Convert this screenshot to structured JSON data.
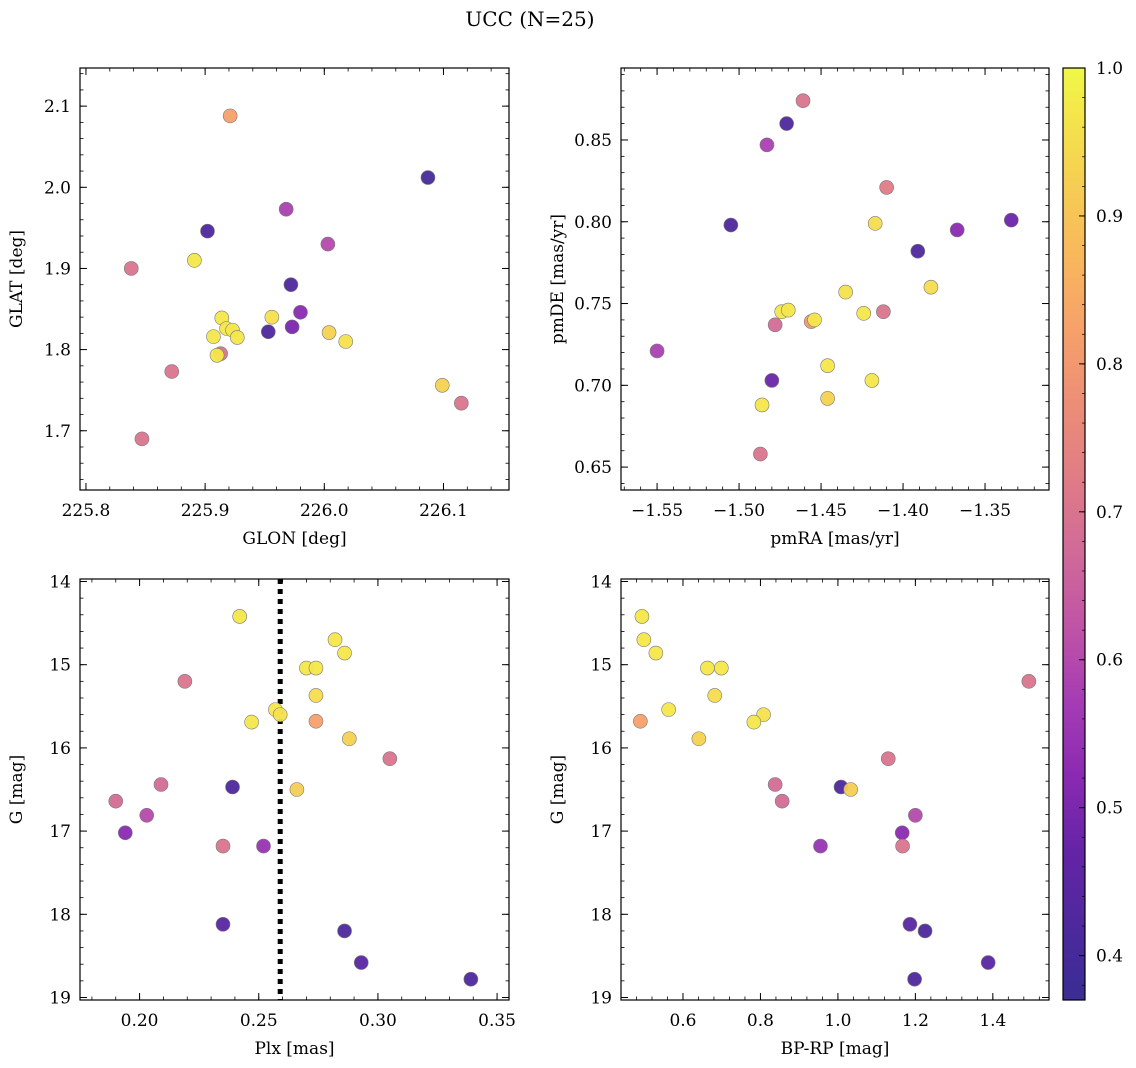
{
  "figure": {
    "title": "UCC (N=25)",
    "colorbar": {
      "cmap": "plasma",
      "range": [
        0.37,
        1.0
      ],
      "ticks": [
        0.4,
        0.5,
        0.6,
        0.7,
        0.8,
        0.9,
        1.0
      ],
      "tick_labels": [
        "0.4",
        "0.5",
        "0.6",
        "0.7",
        "0.8",
        "0.9",
        "1.0"
      ]
    }
  },
  "chart_data": [
    {
      "id": "glon-glat",
      "type": "scatter",
      "xlabel": "GLON [deg]",
      "ylabel": "GLAT [deg]",
      "xlim": [
        225.795,
        226.155
      ],
      "ylim": [
        1.627,
        2.147
      ],
      "xticks": [
        225.8,
        225.9,
        226.0,
        226.1
      ],
      "xtick_labels": [
        "225.8",
        "225.9",
        "226.0",
        "226.1"
      ],
      "yticks": [
        1.7,
        1.8,
        1.9,
        2.0,
        2.1
      ],
      "ytick_labels": [
        "1.7",
        "1.8",
        "1.9",
        "2.0",
        "2.1"
      ],
      "grid": false,
      "points": [
        {
          "x": 225.921,
          "y": 2.088,
          "c": 0.82
        },
        {
          "x": 226.087,
          "y": 2.012,
          "c": 0.4
        },
        {
          "x": 225.968,
          "y": 1.973,
          "c": 0.58
        },
        {
          "x": 225.902,
          "y": 1.946,
          "c": 0.42
        },
        {
          "x": 226.003,
          "y": 1.93,
          "c": 0.6
        },
        {
          "x": 225.891,
          "y": 1.91,
          "c": 0.97
        },
        {
          "x": 225.838,
          "y": 1.9,
          "c": 0.7
        },
        {
          "x": 225.972,
          "y": 1.88,
          "c": 0.42
        },
        {
          "x": 225.98,
          "y": 1.846,
          "c": 0.52
        },
        {
          "x": 225.956,
          "y": 1.84,
          "c": 0.96
        },
        {
          "x": 225.914,
          "y": 1.839,
          "c": 0.97
        },
        {
          "x": 225.973,
          "y": 1.828,
          "c": 0.5
        },
        {
          "x": 225.918,
          "y": 1.826,
          "c": 0.97
        },
        {
          "x": 225.923,
          "y": 1.824,
          "c": 0.97
        },
        {
          "x": 225.953,
          "y": 1.822,
          "c": 0.42
        },
        {
          "x": 226.004,
          "y": 1.821,
          "c": 0.93
        },
        {
          "x": 225.907,
          "y": 1.816,
          "c": 0.97
        },
        {
          "x": 225.927,
          "y": 1.815,
          "c": 0.97
        },
        {
          "x": 226.018,
          "y": 1.81,
          "c": 0.96
        },
        {
          "x": 225.913,
          "y": 1.795,
          "c": 0.7
        },
        {
          "x": 225.91,
          "y": 1.793,
          "c": 0.97
        },
        {
          "x": 225.872,
          "y": 1.773,
          "c": 0.7
        },
        {
          "x": 226.099,
          "y": 1.756,
          "c": 0.93
        },
        {
          "x": 226.115,
          "y": 1.734,
          "c": 0.7
        },
        {
          "x": 225.847,
          "y": 1.69,
          "c": 0.7
        }
      ]
    },
    {
      "id": "pmra-pmde",
      "type": "scatter",
      "xlabel": "pmRA [mas/yr]",
      "ylabel": "pmDE [mas/yr]",
      "xlim": [
        -1.572,
        -1.311
      ],
      "ylim": [
        0.636,
        0.894
      ],
      "xticks": [
        -1.55,
        -1.5,
        -1.45,
        -1.4,
        -1.35
      ],
      "xtick_labels": [
        "−1.55",
        "−1.50",
        "−1.45",
        "−1.40",
        "−1.35"
      ],
      "yticks": [
        0.65,
        0.7,
        0.75,
        0.8,
        0.85
      ],
      "ytick_labels": [
        "0.65",
        "0.70",
        "0.75",
        "0.80",
        "0.85"
      ],
      "grid": false,
      "points": [
        {
          "x": -1.461,
          "y": 0.874,
          "c": 0.7
        },
        {
          "x": -1.471,
          "y": 0.86,
          "c": 0.42
        },
        {
          "x": -1.483,
          "y": 0.847,
          "c": 0.58
        },
        {
          "x": -1.41,
          "y": 0.821,
          "c": 0.72
        },
        {
          "x": -1.334,
          "y": 0.801,
          "c": 0.48
        },
        {
          "x": -1.417,
          "y": 0.799,
          "c": 0.95
        },
        {
          "x": -1.505,
          "y": 0.798,
          "c": 0.42
        },
        {
          "x": -1.367,
          "y": 0.795,
          "c": 0.52
        },
        {
          "x": -1.391,
          "y": 0.782,
          "c": 0.42
        },
        {
          "x": -1.383,
          "y": 0.76,
          "c": 0.95
        },
        {
          "x": -1.435,
          "y": 0.757,
          "c": 0.96
        },
        {
          "x": -1.474,
          "y": 0.745,
          "c": 0.97
        },
        {
          "x": -1.47,
          "y": 0.746,
          "c": 0.97
        },
        {
          "x": -1.424,
          "y": 0.744,
          "c": 0.97
        },
        {
          "x": -1.412,
          "y": 0.745,
          "c": 0.7
        },
        {
          "x": -1.456,
          "y": 0.739,
          "c": 0.8
        },
        {
          "x": -1.454,
          "y": 0.74,
          "c": 0.97
        },
        {
          "x": -1.478,
          "y": 0.737,
          "c": 0.68
        },
        {
          "x": -1.55,
          "y": 0.721,
          "c": 0.58
        },
        {
          "x": -1.446,
          "y": 0.712,
          "c": 0.97
        },
        {
          "x": -1.48,
          "y": 0.703,
          "c": 0.48
        },
        {
          "x": -1.419,
          "y": 0.703,
          "c": 0.97
        },
        {
          "x": -1.446,
          "y": 0.692,
          "c": 0.93
        },
        {
          "x": -1.486,
          "y": 0.688,
          "c": 0.97
        },
        {
          "x": -1.487,
          "y": 0.658,
          "c": 0.7
        }
      ]
    },
    {
      "id": "plx-g",
      "type": "scatter",
      "xlabel": "Plx [mas]",
      "ylabel": "G [mag]",
      "xlim": [
        0.175,
        0.355
      ],
      "ylim": [
        19.03,
        13.97
      ],
      "y_inverted": true,
      "xticks": [
        0.2,
        0.25,
        0.3,
        0.35
      ],
      "xtick_labels": [
        "0.20",
        "0.25",
        "0.30",
        "0.35"
      ],
      "yticks": [
        14,
        15,
        16,
        17,
        18,
        19
      ],
      "ytick_labels": [
        "14",
        "15",
        "16",
        "17",
        "18",
        "19"
      ],
      "grid": false,
      "vline": {
        "x": 0.259,
        "style": "dotted",
        "color": "#000000"
      },
      "points": [
        {
          "x": 0.242,
          "y": 14.42,
          "c": 0.97
        },
        {
          "x": 0.282,
          "y": 14.7,
          "c": 0.97
        },
        {
          "x": 0.286,
          "y": 14.86,
          "c": 0.97
        },
        {
          "x": 0.27,
          "y": 15.04,
          "c": 0.97
        },
        {
          "x": 0.274,
          "y": 15.04,
          "c": 0.97
        },
        {
          "x": 0.219,
          "y": 15.2,
          "c": 0.7
        },
        {
          "x": 0.274,
          "y": 15.37,
          "c": 0.95
        },
        {
          "x": 0.257,
          "y": 15.54,
          "c": 0.97
        },
        {
          "x": 0.259,
          "y": 15.6,
          "c": 0.96
        },
        {
          "x": 0.247,
          "y": 15.69,
          "c": 0.97
        },
        {
          "x": 0.274,
          "y": 15.68,
          "c": 0.82
        },
        {
          "x": 0.288,
          "y": 15.89,
          "c": 0.93
        },
        {
          "x": 0.305,
          "y": 16.13,
          "c": 0.7
        },
        {
          "x": 0.209,
          "y": 16.44,
          "c": 0.68
        },
        {
          "x": 0.239,
          "y": 16.47,
          "c": 0.42
        },
        {
          "x": 0.266,
          "y": 16.5,
          "c": 0.92
        },
        {
          "x": 0.19,
          "y": 16.64,
          "c": 0.68
        },
        {
          "x": 0.203,
          "y": 16.81,
          "c": 0.6
        },
        {
          "x": 0.194,
          "y": 17.02,
          "c": 0.52
        },
        {
          "x": 0.235,
          "y": 17.18,
          "c": 0.7
        },
        {
          "x": 0.252,
          "y": 17.18,
          "c": 0.55
        },
        {
          "x": 0.235,
          "y": 18.12,
          "c": 0.45
        },
        {
          "x": 0.286,
          "y": 18.2,
          "c": 0.42
        },
        {
          "x": 0.293,
          "y": 18.58,
          "c": 0.45
        },
        {
          "x": 0.339,
          "y": 18.78,
          "c": 0.42
        }
      ]
    },
    {
      "id": "bprp-g",
      "type": "scatter",
      "xlabel": "BP-RP [mag]",
      "ylabel": "G [mag]",
      "xlim": [
        0.44,
        1.545
      ],
      "ylim": [
        19.03,
        13.97
      ],
      "y_inverted": true,
      "xticks": [
        0.6,
        0.8,
        1.0,
        1.2,
        1.4
      ],
      "xtick_labels": [
        "0.6",
        "0.8",
        "1.0",
        "1.2",
        "1.4"
      ],
      "yticks": [
        14,
        15,
        16,
        17,
        18,
        19
      ],
      "ytick_labels": [
        "14",
        "15",
        "16",
        "17",
        "18",
        "19"
      ],
      "grid": false,
      "points": [
        {
          "x": 0.494,
          "y": 14.42,
          "c": 0.97
        },
        {
          "x": 0.499,
          "y": 14.7,
          "c": 0.97
        },
        {
          "x": 0.53,
          "y": 14.86,
          "c": 0.97
        },
        {
          "x": 0.663,
          "y": 15.04,
          "c": 0.97
        },
        {
          "x": 0.699,
          "y": 15.04,
          "c": 0.97
        },
        {
          "x": 1.493,
          "y": 15.2,
          "c": 0.7
        },
        {
          "x": 0.682,
          "y": 15.37,
          "c": 0.95
        },
        {
          "x": 0.563,
          "y": 15.54,
          "c": 0.97
        },
        {
          "x": 0.808,
          "y": 15.6,
          "c": 0.96
        },
        {
          "x": 0.783,
          "y": 15.69,
          "c": 0.97
        },
        {
          "x": 0.49,
          "y": 15.68,
          "c": 0.82
        },
        {
          "x": 0.641,
          "y": 15.89,
          "c": 0.93
        },
        {
          "x": 1.13,
          "y": 16.13,
          "c": 0.7
        },
        {
          "x": 0.838,
          "y": 16.44,
          "c": 0.68
        },
        {
          "x": 1.008,
          "y": 16.47,
          "c": 0.42
        },
        {
          "x": 1.033,
          "y": 16.5,
          "c": 0.92
        },
        {
          "x": 0.856,
          "y": 16.64,
          "c": 0.68
        },
        {
          "x": 1.2,
          "y": 16.81,
          "c": 0.6
        },
        {
          "x": 1.166,
          "y": 17.02,
          "c": 0.52
        },
        {
          "x": 1.167,
          "y": 17.18,
          "c": 0.7
        },
        {
          "x": 0.955,
          "y": 17.18,
          "c": 0.55
        },
        {
          "x": 1.186,
          "y": 18.12,
          "c": 0.45
        },
        {
          "x": 1.225,
          "y": 18.2,
          "c": 0.42
        },
        {
          "x": 1.388,
          "y": 18.58,
          "c": 0.45
        },
        {
          "x": 1.198,
          "y": 18.78,
          "c": 0.42
        }
      ]
    }
  ]
}
